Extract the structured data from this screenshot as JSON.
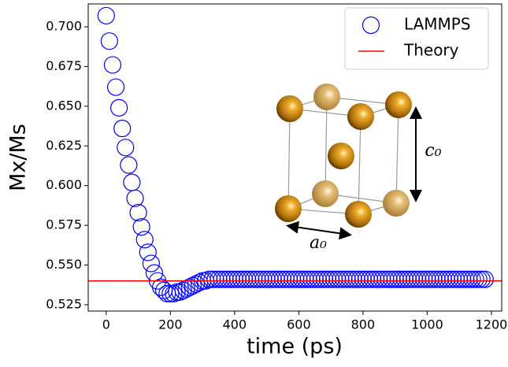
{
  "chart_data": {
    "type": "scatter",
    "xlabel": "time (ps)",
    "ylabel": "Mx/Ms",
    "x": [
      0,
      10,
      20,
      30,
      40,
      50,
      60,
      70,
      80,
      90,
      100,
      110,
      120,
      130,
      140,
      150,
      160,
      170,
      180,
      190,
      200,
      210,
      220,
      230,
      240,
      250,
      260,
      270,
      280,
      290,
      300,
      310,
      320,
      330,
      340,
      350,
      360,
      370,
      380,
      390,
      400,
      410,
      420,
      430,
      440,
      450,
      460,
      470,
      480,
      490,
      500,
      510,
      520,
      530,
      540,
      550,
      560,
      570,
      580,
      590,
      600,
      610,
      620,
      630,
      640,
      650,
      660,
      670,
      680,
      690,
      700,
      710,
      720,
      730,
      740,
      750,
      760,
      770,
      780,
      790,
      800,
      810,
      820,
      830,
      840,
      850,
      860,
      870,
      880,
      890,
      900,
      910,
      920,
      930,
      940,
      950,
      960,
      970,
      980,
      990,
      1000,
      1010,
      1020,
      1030,
      1040,
      1050,
      1060,
      1070,
      1080,
      1090,
      1100,
      1110,
      1120,
      1130,
      1140,
      1150,
      1160,
      1170,
      1180
    ],
    "series": [
      {
        "name": "LAMMPS",
        "color": "#0000ff",
        "values": [
          0.707,
          0.691,
          0.676,
          0.662,
          0.649,
          0.636,
          0.624,
          0.613,
          0.602,
          0.592,
          0.583,
          0.574,
          0.566,
          0.558,
          0.551,
          0.545,
          0.54,
          0.536,
          0.534,
          0.532,
          0.532,
          0.532,
          0.533,
          0.533,
          0.534,
          0.535,
          0.536,
          0.537,
          0.538,
          0.539,
          0.54,
          0.54,
          0.541,
          0.541,
          0.541,
          0.541,
          0.541,
          0.541,
          0.541,
          0.541,
          0.541,
          0.541,
          0.541,
          0.541,
          0.541,
          0.541,
          0.541,
          0.541,
          0.541,
          0.541,
          0.541,
          0.541,
          0.541,
          0.541,
          0.541,
          0.541,
          0.541,
          0.541,
          0.541,
          0.541,
          0.541,
          0.541,
          0.541,
          0.541,
          0.541,
          0.541,
          0.541,
          0.541,
          0.541,
          0.541,
          0.541,
          0.541,
          0.541,
          0.541,
          0.541,
          0.541,
          0.541,
          0.541,
          0.541,
          0.541,
          0.541,
          0.541,
          0.541,
          0.541,
          0.541,
          0.541,
          0.541,
          0.541,
          0.541,
          0.541,
          0.541,
          0.541,
          0.541,
          0.541,
          0.541,
          0.541,
          0.541,
          0.541,
          0.541,
          0.541,
          0.541,
          0.541,
          0.541,
          0.541,
          0.541,
          0.541,
          0.541,
          0.541,
          0.541,
          0.541,
          0.541,
          0.541,
          0.541,
          0.541,
          0.541,
          0.541,
          0.541,
          0.541,
          0.541
        ]
      }
    ],
    "reference_line": {
      "name": "Theory",
      "value": 0.54,
      "color": "#ff0000"
    },
    "xlim": [
      -56,
      1232
    ],
    "ylim": [
      0.521,
      0.7144
    ],
    "xticks": [
      0,
      200,
      400,
      600,
      800,
      1000,
      1200
    ],
    "yticks": [
      0.525,
      {
        "value": 0.55,
        "label": "0.550"
      },
      0.575,
      {
        "value": 0.6,
        "label": "0.600"
      },
      0.625,
      {
        "value": 0.65,
        "label": "0.650"
      },
      0.675,
      {
        "value": 0.7,
        "label": "0.700"
      }
    ],
    "legend": "upper right",
    "annotations": [
      "a₀",
      "c₀"
    ]
  }
}
